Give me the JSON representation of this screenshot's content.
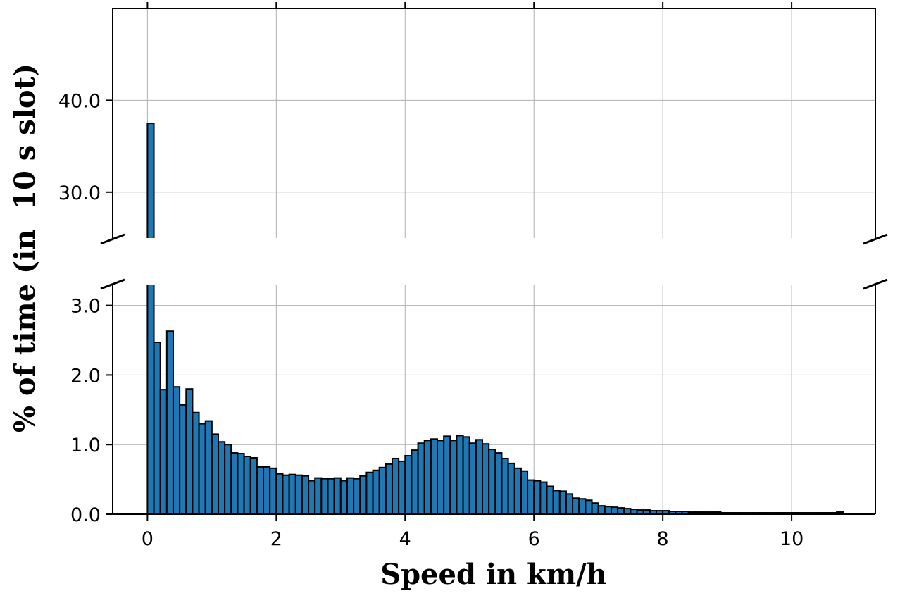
{
  "chart_data": {
    "type": "bar",
    "xlabel": "Speed in km/h",
    "ylabel": "% of time (in  10 s slot)",
    "bin_width": 0.1,
    "xlim": [
      -0.54,
      11.3
    ],
    "xticks": [
      0,
      2,
      4,
      6,
      8,
      10
    ],
    "xtick_labels": [
      "0",
      "2",
      "4",
      "6",
      "8",
      "10"
    ],
    "broken_y_axis": true,
    "upper_panel": {
      "ylim": [
        25,
        50
      ],
      "yticks": [
        30,
        40
      ],
      "ytick_labels": [
        "30.0",
        "40.0"
      ]
    },
    "lower_panel": {
      "ylim": [
        0,
        3.3
      ],
      "yticks": [
        0,
        1,
        2,
        3
      ],
      "ytick_labels": [
        "0.0",
        "1.0",
        "2.0",
        "3.0"
      ]
    },
    "grid": true,
    "bar_color": "#1f77b4",
    "edge_color": "#000000",
    "x": [
      0.05,
      0.15,
      0.25,
      0.35,
      0.45,
      0.55,
      0.65,
      0.75,
      0.85,
      0.95,
      1.05,
      1.15,
      1.25,
      1.35,
      1.45,
      1.55,
      1.65,
      1.75,
      1.85,
      1.95,
      2.05,
      2.15,
      2.25,
      2.35,
      2.45,
      2.55,
      2.65,
      2.75,
      2.85,
      2.95,
      3.05,
      3.15,
      3.25,
      3.35,
      3.45,
      3.55,
      3.65,
      3.75,
      3.85,
      3.95,
      4.05,
      4.15,
      4.25,
      4.35,
      4.45,
      4.55,
      4.65,
      4.75,
      4.85,
      4.95,
      5.05,
      5.15,
      5.25,
      5.35,
      5.45,
      5.55,
      5.65,
      5.75,
      5.85,
      5.95,
      6.05,
      6.15,
      6.25,
      6.35,
      6.45,
      6.55,
      6.65,
      6.75,
      6.85,
      6.95,
      7.05,
      7.15,
      7.25,
      7.35,
      7.45,
      7.55,
      7.65,
      7.75,
      7.85,
      7.95,
      8.05,
      8.15,
      8.25,
      8.35,
      8.45,
      8.55,
      8.65,
      8.75,
      8.85,
      8.95,
      9.05,
      9.15,
      9.25,
      9.35,
      9.45,
      9.55,
      9.65,
      9.75,
      9.85,
      9.95,
      10.05,
      10.15,
      10.25,
      10.35,
      10.45,
      10.55,
      10.65,
      10.75
    ],
    "values": [
      37.5,
      2.47,
      1.79,
      2.63,
      1.83,
      1.57,
      1.8,
      1.46,
      1.3,
      1.34,
      1.15,
      1.04,
      1.0,
      0.88,
      0.87,
      0.83,
      0.81,
      0.68,
      0.68,
      0.66,
      0.58,
      0.56,
      0.57,
      0.56,
      0.55,
      0.48,
      0.52,
      0.51,
      0.51,
      0.52,
      0.48,
      0.52,
      0.51,
      0.55,
      0.6,
      0.63,
      0.67,
      0.72,
      0.8,
      0.76,
      0.84,
      0.92,
      1.02,
      1.06,
      1.08,
      1.06,
      1.12,
      1.06,
      1.13,
      1.11,
      1.02,
      1.07,
      1.01,
      0.93,
      0.88,
      0.8,
      0.73,
      0.66,
      0.62,
      0.49,
      0.48,
      0.46,
      0.4,
      0.34,
      0.33,
      0.29,
      0.23,
      0.22,
      0.2,
      0.16,
      0.12,
      0.11,
      0.1,
      0.09,
      0.08,
      0.07,
      0.06,
      0.06,
      0.05,
      0.05,
      0.05,
      0.04,
      0.04,
      0.04,
      0.03,
      0.03,
      0.03,
      0.03,
      0.03,
      0.02,
      0.02,
      0.02,
      0.02,
      0.02,
      0.02,
      0.02,
      0.02,
      0.02,
      0.02,
      0.02,
      0.02,
      0.02,
      0.02,
      0.02,
      0.02,
      0.02,
      0.02,
      0.03
    ]
  }
}
